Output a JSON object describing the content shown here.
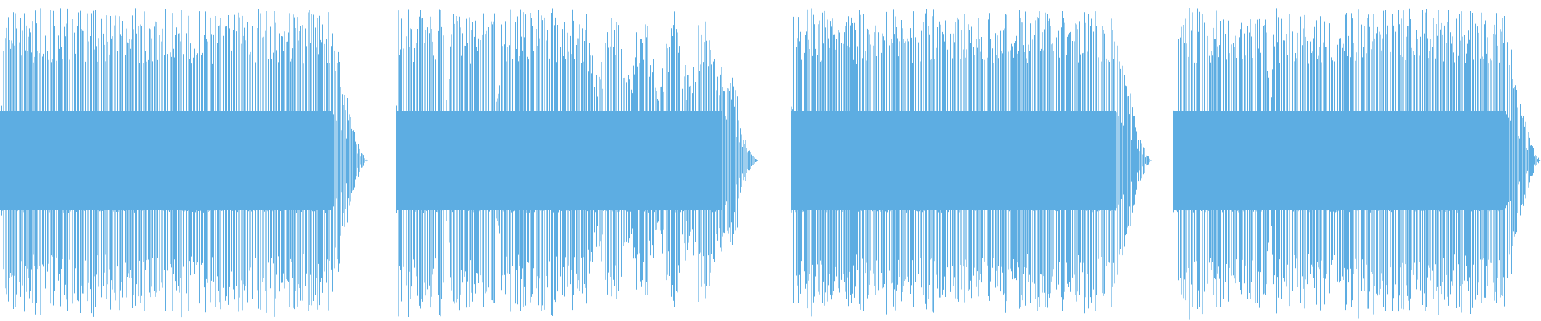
{
  "waveform": {
    "color": "#5DADE2",
    "background": "#FFFFFF",
    "clips": 4
  }
}
